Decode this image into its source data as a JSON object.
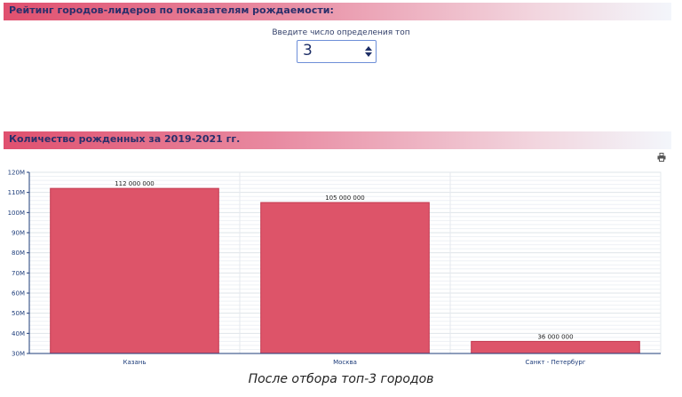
{
  "header1": {
    "title": "Рейтинг городов-лидеров по показателям рождаемости:"
  },
  "top_input": {
    "label": "Введите число определения топ",
    "value": "3"
  },
  "header2": {
    "title": "Количество рожденных за 2019-2021 гг."
  },
  "toolbar": {
    "print_icon": "printer-icon"
  },
  "chart_data": {
    "type": "bar",
    "categories": [
      "Казань",
      "Москва",
      "Санкт - Петербург"
    ],
    "values": [
      112000000,
      105000000,
      36000000
    ],
    "value_labels": [
      "112 000 000",
      "105 000 000",
      "36 000 000"
    ],
    "ylim": [
      30000000,
      120000000
    ],
    "y_ticks": [
      30000000,
      40000000,
      50000000,
      60000000,
      70000000,
      80000000,
      90000000,
      100000000,
      110000000,
      120000000
    ],
    "y_tick_labels": [
      "30M",
      "40M",
      "50M",
      "60M",
      "70M",
      "80M",
      "90M",
      "100M",
      "110M",
      "120M"
    ],
    "title": "",
    "xlabel": "",
    "ylabel": "",
    "grid": true,
    "bar_color": "#dd5469",
    "bar_border_color": "#c23a50"
  },
  "caption": "После отбора топ-3 городов"
}
